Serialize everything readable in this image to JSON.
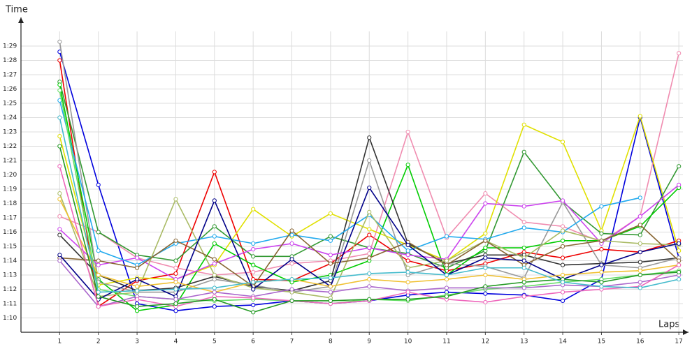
{
  "chart_data": {
    "type": "line",
    "y_label": "Time",
    "x_label": "Laps",
    "x": [
      1,
      2,
      3,
      4,
      5,
      6,
      7,
      8,
      9,
      10,
      11,
      12,
      13,
      14,
      15,
      16,
      17
    ],
    "xlim": [
      0,
      17.25
    ],
    "ylim": [
      69,
      91
    ],
    "yticks": [
      {
        "value": 70,
        "label": "1:10"
      },
      {
        "value": 71,
        "label": "1:11"
      },
      {
        "value": 72,
        "label": "1:12"
      },
      {
        "value": 73,
        "label": "1:13"
      },
      {
        "value": 74,
        "label": "1:14"
      },
      {
        "value": 75,
        "label": "1:15"
      },
      {
        "value": 76,
        "label": "1:16"
      },
      {
        "value": 77,
        "label": "1:17"
      },
      {
        "value": 78,
        "label": "1:18"
      },
      {
        "value": 79,
        "label": "1:19"
      },
      {
        "value": 80,
        "label": "1:20"
      },
      {
        "value": 81,
        "label": "1:21"
      },
      {
        "value": 82,
        "label": "1:22"
      },
      {
        "value": 83,
        "label": "1:23"
      },
      {
        "value": 84,
        "label": "1:24"
      },
      {
        "value": 85,
        "label": "1:25"
      },
      {
        "value": 86,
        "label": "1:26"
      },
      {
        "value": 87,
        "label": "1:27"
      },
      {
        "value": 88,
        "label": "1:28"
      },
      {
        "value": 89,
        "label": "1:29"
      }
    ],
    "grid": true,
    "series": [
      {
        "color": "#0000dd",
        "values": [
          88.6,
          79.3,
          71.0,
          70.5,
          70.8,
          70.9,
          71.2,
          71.0,
          71.2,
          71.6,
          71.8,
          71.7,
          71.6,
          71.2,
          72.7,
          84.0,
          74.2
        ]
      },
      {
        "color": "#ee0000",
        "values": [
          88.0,
          70.8,
          72.6,
          73.1,
          80.2,
          72.7,
          72.6,
          73.8,
          75.8,
          74.0,
          73.3,
          73.8,
          74.6,
          74.2,
          74.8,
          74.6,
          75.4
        ]
      },
      {
        "color": "#f08cb0",
        "values": [
          77.1,
          76.0,
          74.2,
          73.5,
          73.0,
          73.2,
          73.8,
          74.0,
          74.5,
          83.0,
          75.6,
          78.7,
          76.7,
          76.4,
          75.3,
          77.1,
          88.5
        ]
      },
      {
        "color": "#e0e000",
        "values": [
          82.7,
          72.3,
          72.8,
          72.7,
          73.7,
          77.6,
          75.7,
          77.3,
          76.2,
          75.1,
          74.0,
          75.9,
          83.5,
          82.3,
          76.1,
          84.1,
          74.7
        ]
      },
      {
        "color": "#339933",
        "values": [
          86.5,
          76.0,
          74.4,
          74.0,
          76.4,
          74.3,
          74.3,
          75.7,
          74.9,
          74.5,
          73.5,
          74.7,
          81.6,
          78.1,
          75.9,
          75.8,
          80.6
        ]
      },
      {
        "color": "#00cc00",
        "values": [
          86.3,
          72.7,
          70.5,
          70.9,
          75.2,
          73.7,
          72.5,
          73.0,
          74.0,
          80.7,
          73.0,
          74.9,
          74.9,
          75.4,
          75.4,
          76.4,
          79.1
        ]
      },
      {
        "color": "#333333",
        "values": [
          75.8,
          73.0,
          71.9,
          72.1,
          72.9,
          72.2,
          71.9,
          72.6,
          82.6,
          75.2,
          73.8,
          74.4,
          74.4,
          73.7,
          73.8,
          73.9,
          74.2
        ]
      },
      {
        "color": "#999999",
        "values": [
          89.3,
          72.5,
          71.8,
          71.8,
          72.7,
          72.3,
          71.8,
          72.2,
          81.0,
          73.0,
          73.8,
          73.6,
          72.8,
          78.1,
          73.7,
          73.5,
          74.2
        ]
      },
      {
        "color": "#cc44ee",
        "values": [
          76.2,
          73.7,
          74.2,
          72.7,
          73.8,
          74.8,
          75.2,
          74.4,
          74.9,
          74.4,
          74.1,
          78.0,
          77.8,
          78.2,
          75.2,
          77.1,
          79.3
        ]
      },
      {
        "color": "#22aaee",
        "values": [
          85.2,
          74.7,
          73.7,
          75.2,
          75.7,
          75.2,
          75.8,
          75.4,
          77.2,
          74.7,
          75.7,
          75.5,
          76.3,
          76.0,
          77.8,
          78.4,
          null
        ]
      },
      {
        "color": "#aabb66",
        "values": [
          78.7,
          71.5,
          71.8,
          78.3,
          73.0,
          72.1,
          71.8,
          71.4,
          77.4,
          73.5,
          74.0,
          75.4,
          74.2,
          76.1,
          75.4,
          75.2,
          75.1
        ]
      },
      {
        "color": "#886633",
        "values": [
          74.2,
          74.0,
          73.5,
          75.4,
          74.1,
          72.2,
          76.1,
          73.8,
          74.2,
          75.3,
          73.7,
          75.4,
          73.7,
          75.0,
          75.4,
          76.5,
          74.0
        ]
      },
      {
        "color": "#000088",
        "values": [
          74.4,
          71.3,
          72.7,
          71.5,
          78.2,
          72.0,
          74.1,
          72.2,
          79.1,
          75.1,
          73.0,
          74.2,
          74.0,
          72.7,
          73.7,
          74.6,
          75.2
        ]
      },
      {
        "color": "#66dd66",
        "values": [
          85.9,
          72.0,
          71.5,
          71.3,
          71.2,
          71.3,
          71.2,
          71.0,
          71.3,
          71.2,
          71.6,
          72.0,
          72.2,
          72.5,
          72.7,
          73.0,
          73.3
        ]
      },
      {
        "color": "#f0c030",
        "values": [
          78.3,
          73.0,
          72.2,
          72.5,
          71.8,
          72.5,
          72.7,
          72.2,
          72.7,
          72.5,
          72.7,
          73.0,
          72.7,
          73.0,
          73.2,
          73.3,
          73.7
        ]
      },
      {
        "color": "#aa66cc",
        "values": [
          74.0,
          70.8,
          71.5,
          71.3,
          71.8,
          71.5,
          72.0,
          71.8,
          72.2,
          71.9,
          72.1,
          72.1,
          72.1,
          72.3,
          72.2,
          72.5,
          73.0
        ]
      },
      {
        "color": "#ee66bb",
        "values": [
          80.6,
          70.8,
          71.3,
          70.8,
          71.5,
          71.4,
          71.2,
          71.0,
          71.2,
          71.8,
          71.3,
          71.1,
          71.5,
          71.8,
          72.0,
          72.2,
          73.7
        ]
      },
      {
        "color": "#229922",
        "values": [
          82.0,
          71.5,
          70.8,
          71.0,
          71.3,
          70.4,
          71.2,
          71.2,
          71.3,
          71.3,
          71.5,
          72.2,
          72.5,
          72.7,
          72.5,
          73.0,
          73.2
        ]
      },
      {
        "color": "#44bbcc",
        "values": [
          84.0,
          71.8,
          71.9,
          72.0,
          72.1,
          72.5,
          72.7,
          72.8,
          73.1,
          73.2,
          73.0,
          73.5,
          73.5,
          72.5,
          72.2,
          72.1,
          72.7
        ]
      }
    ]
  }
}
